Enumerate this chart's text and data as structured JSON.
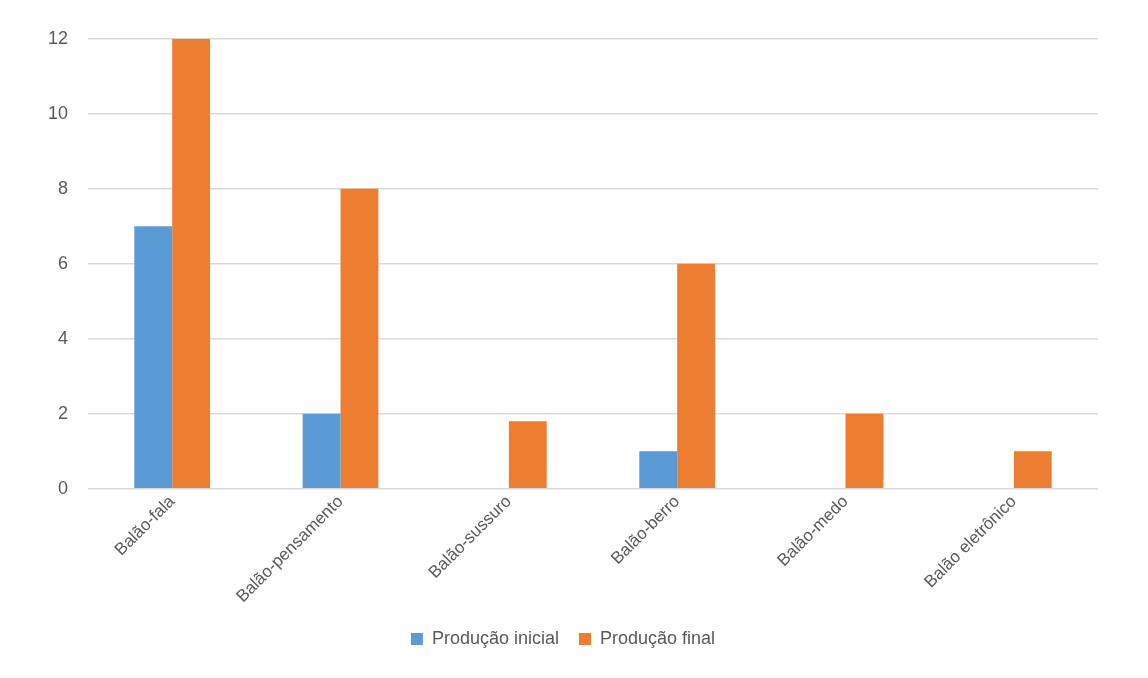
{
  "chart_data": {
    "type": "bar",
    "categories": [
      "Balão-fala",
      "Balão-pensamento",
      "Balão-sussuro",
      "Balão-berro",
      "Balão-medo",
      "Balão eletrônico"
    ],
    "series": [
      {
        "name": "Produção inicial",
        "color": "#5b9bd5",
        "values": [
          7,
          2,
          0,
          1,
          0,
          0
        ]
      },
      {
        "name": "Produção final",
        "color": "#ed7d31",
        "values": [
          12,
          8,
          1.8,
          6,
          2,
          1
        ]
      }
    ],
    "ylim": [
      0,
      12
    ],
    "yticks": [
      0,
      2,
      4,
      6,
      8,
      10,
      12
    ],
    "grid": "y",
    "legend": "bottom"
  }
}
